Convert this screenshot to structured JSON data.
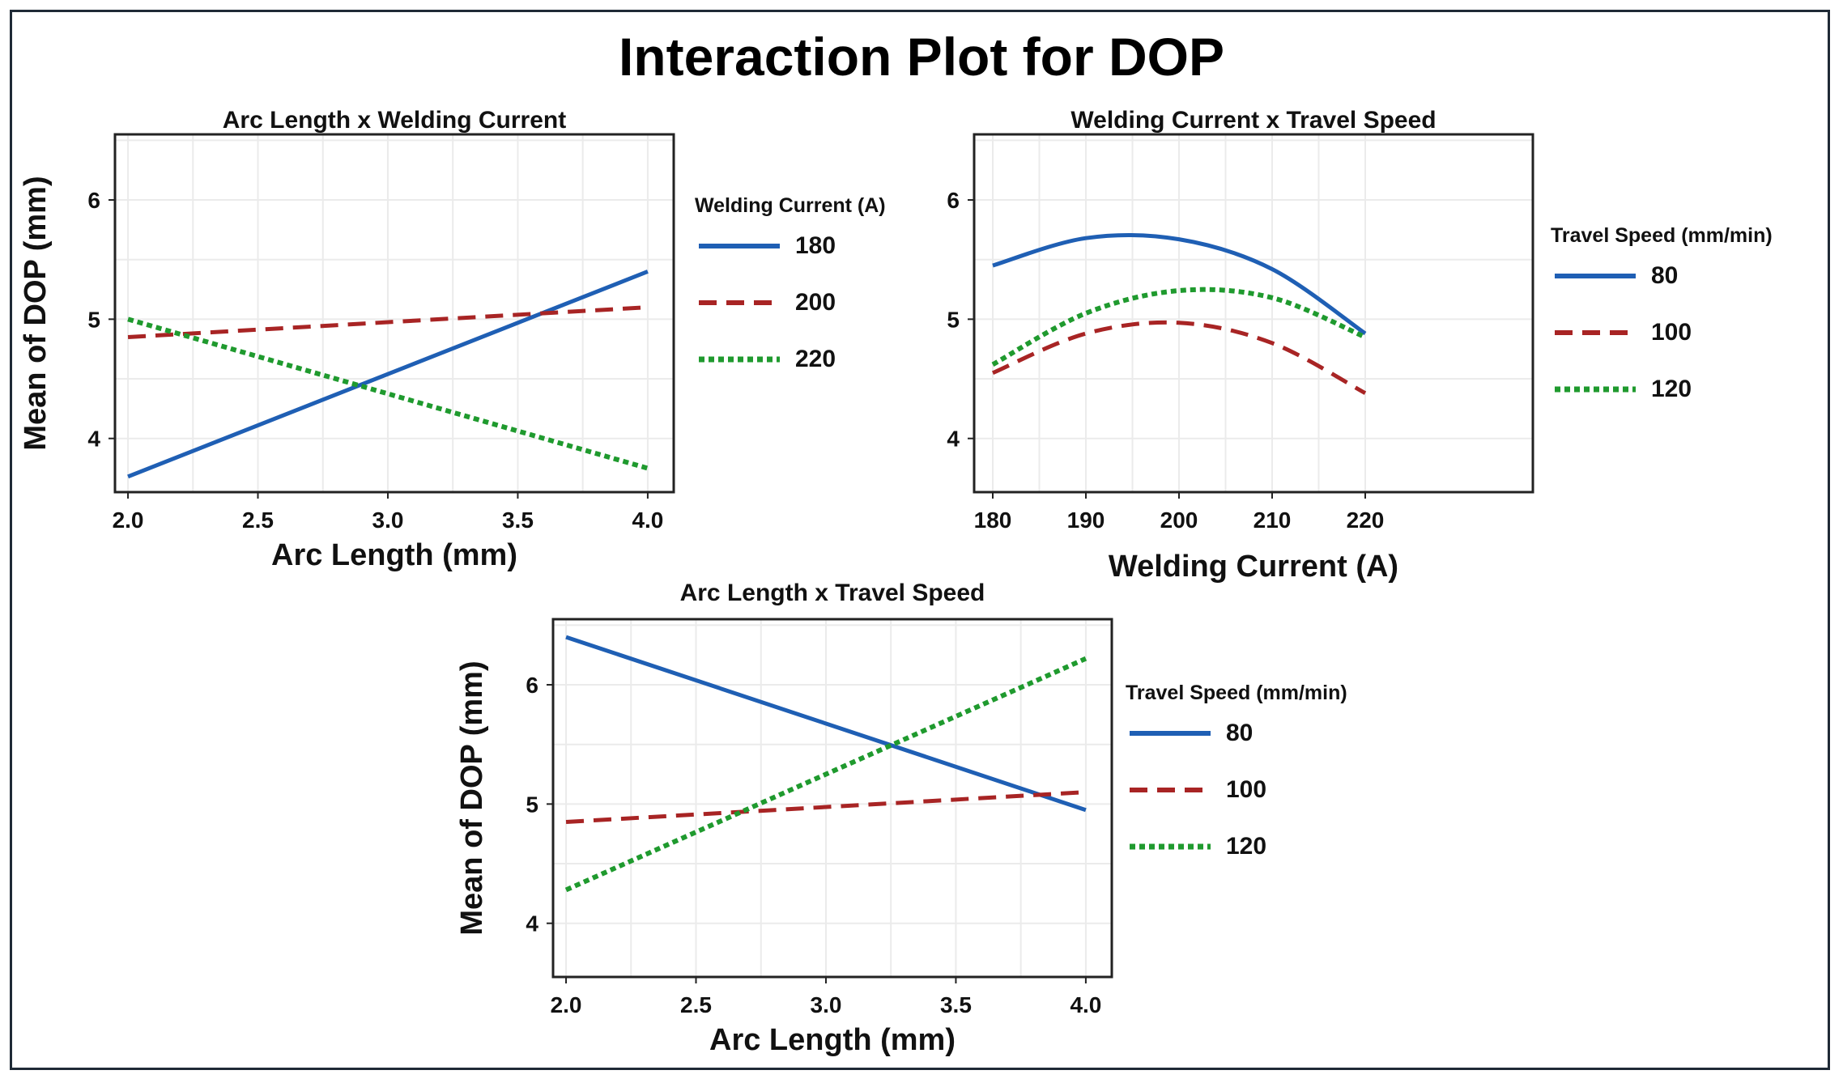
{
  "title": "Interaction Plot for DOP",
  "colors": {
    "s1": "#1f5fb4",
    "s2": "#a82424",
    "s3": "#1f9a2e",
    "grid": "#ebebeb",
    "axis": "#222222"
  },
  "chart_data": [
    {
      "type": "line",
      "title": "Arc Length x Welding Current",
      "xlabel": "Arc Length (mm)",
      "ylabel": "Mean of DOP (mm)",
      "xlim": [
        1.95,
        4.1
      ],
      "ylim": [
        3.55,
        6.55
      ],
      "xticks": [
        "2.0",
        "2.5",
        "3.0",
        "3.5",
        "4.0"
      ],
      "yticks": [
        "4",
        "5",
        "6"
      ],
      "legend_title": "Welding Current (A)",
      "x": [
        2.0,
        4.0
      ],
      "series": [
        {
          "name": "180",
          "style": "solid",
          "values": [
            3.68,
            5.4
          ]
        },
        {
          "name": "200",
          "style": "dashed",
          "values": [
            4.85,
            5.1
          ]
        },
        {
          "name": "220",
          "style": "dotted",
          "values": [
            5.0,
            3.75
          ]
        }
      ]
    },
    {
      "type": "line",
      "title": "Welding Current x Travel Speed",
      "xlabel": "Welding Current (A)",
      "ylabel": "",
      "xlim": [
        178,
        238
      ],
      "ylim": [
        3.55,
        6.55
      ],
      "xticks": [
        "180",
        "190",
        "200",
        "210",
        "220"
      ],
      "yticks": [
        "4",
        "5",
        "6"
      ],
      "legend_title": "Travel Speed (mm/min)",
      "x": [
        180,
        190,
        200,
        210,
        220
      ],
      "series": [
        {
          "name": "80",
          "style": "solid",
          "values": [
            5.45,
            5.68,
            5.67,
            5.42,
            4.88
          ]
        },
        {
          "name": "100",
          "style": "dashed",
          "values": [
            4.55,
            4.88,
            4.97,
            4.8,
            4.38
          ]
        },
        {
          "name": "120",
          "style": "dotted",
          "values": [
            4.62,
            5.05,
            5.24,
            5.18,
            4.85
          ]
        }
      ]
    },
    {
      "type": "line",
      "title": "Arc Length x Travel Speed",
      "xlabel": "Arc Length (mm)",
      "ylabel": "Mean of DOP (mm)",
      "xlim": [
        1.95,
        4.1
      ],
      "ylim": [
        3.55,
        6.55
      ],
      "xticks": [
        "2.0",
        "2.5",
        "3.0",
        "3.5",
        "4.0"
      ],
      "yticks": [
        "4",
        "5",
        "6"
      ],
      "legend_title": "Travel Speed (mm/min)",
      "x": [
        2.0,
        4.0
      ],
      "series": [
        {
          "name": "80",
          "style": "solid",
          "values": [
            6.4,
            4.95
          ]
        },
        {
          "name": "100",
          "style": "dashed",
          "values": [
            4.85,
            5.1
          ]
        },
        {
          "name": "120",
          "style": "dotted",
          "values": [
            4.28,
            6.22
          ]
        }
      ]
    }
  ]
}
